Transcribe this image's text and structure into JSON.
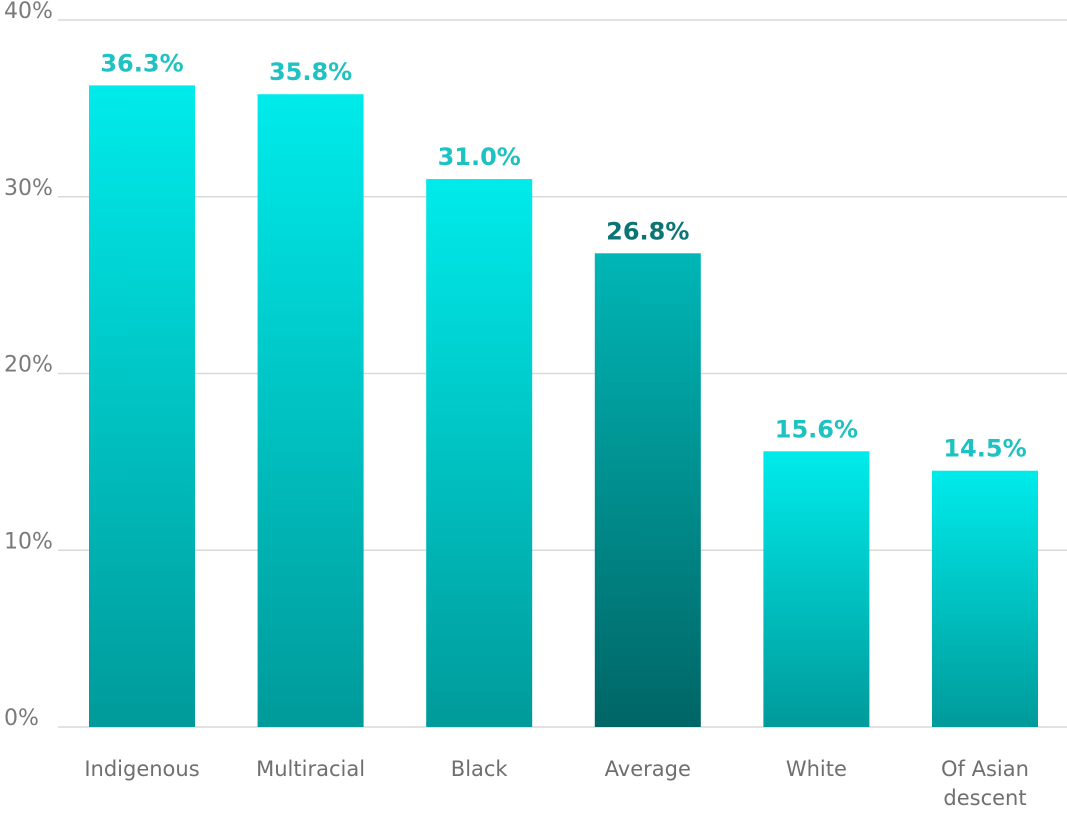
{
  "chart_data": {
    "type": "bar",
    "categories": [
      "Indigenous",
      "Multiracial",
      "Black",
      "Average",
      "White",
      "Of Asian descent"
    ],
    "category_lines": [
      [
        "Indigenous"
      ],
      [
        "Multiracial"
      ],
      [
        "Black"
      ],
      [
        "Average"
      ],
      [
        "White"
      ],
      [
        "Of Asian",
        "descent"
      ]
    ],
    "values": [
      36.3,
      35.8,
      31.0,
      26.8,
      15.6,
      14.5
    ],
    "value_labels": [
      "36.3%",
      "35.8%",
      "31.0%",
      "26.8%",
      "15.6%",
      "14.5%"
    ],
    "highlight_category": "Average",
    "yticks": [
      0,
      10,
      20,
      30,
      40
    ],
    "ytick_labels": [
      "0%",
      "10%",
      "20%",
      "30%",
      "40%"
    ],
    "ylim": [
      0,
      40
    ],
    "grid": true,
    "colors": {
      "bar_top": "#00ebeb",
      "bar_bottom": "#009a9a",
      "highlight_top": "#00b6b6",
      "highlight_bottom": "#006565",
      "label": "#1ec2c2",
      "highlight_label": "#0b7474",
      "grid": "#d9d9d9"
    }
  }
}
